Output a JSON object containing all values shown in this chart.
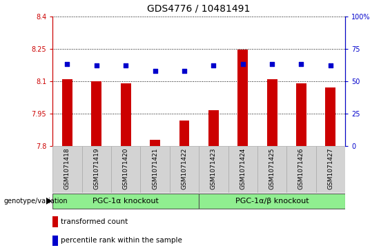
{
  "title": "GDS4776 / 10481491",
  "samples": [
    "GSM1071418",
    "GSM1071419",
    "GSM1071420",
    "GSM1071421",
    "GSM1071422",
    "GSM1071423",
    "GSM1071424",
    "GSM1071425",
    "GSM1071426",
    "GSM1071427"
  ],
  "transformed_counts": [
    8.11,
    8.1,
    8.09,
    7.83,
    7.92,
    7.965,
    8.245,
    8.11,
    8.09,
    8.07
  ],
  "percentile_ranks": [
    63,
    62,
    62,
    58,
    58,
    62,
    63,
    63,
    63,
    62
  ],
  "ylim_left": [
    7.8,
    8.4
  ],
  "ylim_right": [
    0,
    100
  ],
  "yticks_left": [
    7.8,
    7.95,
    8.1,
    8.25,
    8.4
  ],
  "yticks_right": [
    0,
    25,
    50,
    75,
    100
  ],
  "ytick_labels_left": [
    "7.8",
    "7.95",
    "8.1",
    "8.25",
    "8.4"
  ],
  "ytick_labels_right": [
    "0",
    "25",
    "50",
    "75",
    "100%"
  ],
  "bar_color": "#cc0000",
  "dot_color": "#0000cc",
  "group1_label": "PGC-1α knockout",
  "group2_label": "PGC-1α/β knockout",
  "group1_indices": [
    0,
    1,
    2,
    3,
    4
  ],
  "group2_indices": [
    5,
    6,
    7,
    8,
    9
  ],
  "group_bg_color": "#90ee90",
  "tick_bg_color": "#d3d3d3",
  "legend_bar_label": "transformed count",
  "legend_dot_label": "percentile rank within the sample",
  "genotype_label": "genotype/variation",
  "bar_width": 0.35,
  "title_fontsize": 10,
  "tick_fontsize": 7,
  "label_fontsize": 6.5,
  "group_fontsize": 8,
  "legend_fontsize": 7.5
}
